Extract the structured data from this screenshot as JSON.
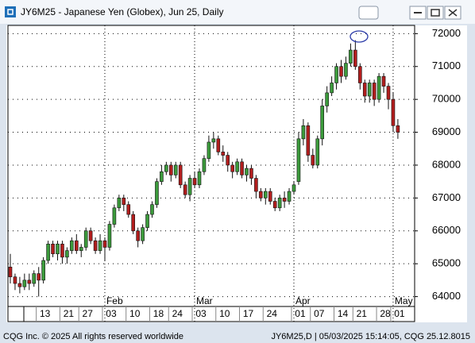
{
  "chart_data": {
    "type": "candlestick",
    "title": "JY6M25 - Japanese Yen (Globex), Jun 25, Daily",
    "footer_left": "CQG Inc. © 2025 All rights reserved worldwide",
    "footer_right": "JY6M25,D | 05/03/2025 15:14:05, CQG 25.12.8015",
    "categories": [
      null,
      null,
      null,
      null,
      null,
      null,
      null,
      "13",
      null,
      null,
      null,
      null,
      "21",
      null,
      null,
      null,
      "27",
      null,
      null,
      null,
      null,
      "03",
      null,
      null,
      null,
      null,
      "10",
      null,
      null,
      null,
      null,
      "18",
      null,
      null,
      null,
      "24",
      null,
      null,
      null,
      null,
      "03",
      null,
      null,
      null,
      null,
      "10",
      null,
      null,
      null,
      null,
      "17",
      null,
      null,
      null,
      null,
      "24",
      null,
      null,
      null,
      null,
      null,
      "01",
      null,
      null,
      null,
      "07",
      null,
      null,
      null,
      null,
      "14",
      null,
      null,
      null,
      "21",
      null,
      null,
      null,
      null,
      "28",
      null,
      null,
      "01"
    ],
    "month_categories": [
      null,
      null,
      null,
      null,
      null,
      null,
      null,
      null,
      null,
      null,
      null,
      null,
      null,
      null,
      null,
      null,
      null,
      null,
      null,
      null,
      null,
      "Feb",
      null,
      null,
      null,
      null,
      null,
      null,
      null,
      null,
      null,
      null,
      null,
      null,
      null,
      null,
      null,
      null,
      null,
      null,
      "Mar",
      null,
      null,
      null,
      null,
      null,
      null,
      null,
      null,
      null,
      null,
      null,
      null,
      null,
      null,
      null,
      null,
      null,
      null,
      null,
      null,
      "Apr",
      null,
      null,
      null,
      null,
      null,
      null,
      null,
      null,
      null,
      null,
      null,
      null,
      null,
      null,
      null,
      null,
      null,
      null,
      null,
      null,
      "May"
    ],
    "open": [
      64900,
      64600,
      64400,
      64300,
      64500,
      64400,
      64700,
      64500,
      65100,
      65600,
      65300,
      65600,
      65200,
      65400,
      65700,
      65400,
      65500,
      66000,
      65700,
      65400,
      65700,
      65500,
      66200,
      66700,
      67000,
      66800,
      66500,
      66000,
      65700,
      66100,
      66500,
      66800,
      67500,
      67800,
      68000,
      67700,
      68000,
      67400,
      67100,
      67600,
      67400,
      67800,
      68200,
      68700,
      68800,
      68400,
      68300,
      68000,
      67800,
      68100,
      67700,
      67900,
      67600,
      67200,
      67000,
      67200,
      66900,
      66700,
      67000,
      66900,
      67200,
      67500,
      68800,
      69200,
      68300,
      68000,
      68800,
      69800,
      70200,
      70500,
      71000,
      70700,
      71100,
      71500,
      71000,
      70500,
      70100,
      70500,
      70000,
      70700,
      70400,
      70000,
      69200
    ],
    "high": [
      65300,
      64700,
      64600,
      64700,
      64700,
      64800,
      64900,
      65200,
      65700,
      65700,
      65700,
      65700,
      65500,
      65800,
      65900,
      65600,
      66100,
      66100,
      65800,
      65900,
      65800,
      66300,
      66800,
      67100,
      67100,
      66900,
      66600,
      66100,
      66200,
      66600,
      66900,
      67600,
      68000,
      68100,
      68100,
      68100,
      68100,
      67500,
      67700,
      67800,
      67900,
      68300,
      68900,
      69000,
      68900,
      68600,
      68400,
      68100,
      68200,
      68200,
      68000,
      68000,
      67700,
      67300,
      67300,
      67300,
      67000,
      67100,
      67200,
      67300,
      67500,
      69000,
      69400,
      69300,
      68500,
      68900,
      70000,
      70400,
      70700,
      71100,
      71200,
      71300,
      71700,
      71800,
      71100,
      70600,
      70600,
      70600,
      70800,
      70800,
      70500,
      70200,
      69400
    ],
    "low": [
      64400,
      64200,
      64100,
      64200,
      64200,
      64300,
      64000,
      64400,
      65000,
      65200,
      65100,
      65000,
      65000,
      65300,
      65300,
      65200,
      65400,
      65600,
      65300,
      65300,
      65100,
      65400,
      66100,
      66600,
      66600,
      66400,
      65900,
      65500,
      65600,
      66000,
      66400,
      66700,
      67400,
      67700,
      67500,
      67600,
      67300,
      67000,
      66900,
      67300,
      67300,
      67700,
      68100,
      68500,
      68300,
      68100,
      67800,
      67600,
      67700,
      67600,
      67500,
      67400,
      67000,
      66900,
      66800,
      66800,
      66600,
      66600,
      66700,
      66800,
      67100,
      67400,
      68600,
      68100,
      67900,
      67900,
      68600,
      69600,
      70100,
      70300,
      70500,
      70600,
      71000,
      70900,
      70300,
      69900,
      69900,
      69800,
      69900,
      70200,
      69700,
      69000,
      68800
    ],
    "close": [
      64600,
      64400,
      64300,
      64500,
      64400,
      64700,
      64500,
      65100,
      65600,
      65300,
      65600,
      65200,
      65400,
      65700,
      65400,
      65500,
      66000,
      65700,
      65400,
      65700,
      65500,
      66200,
      66700,
      67000,
      66800,
      66500,
      66000,
      65700,
      66100,
      66500,
      66800,
      67500,
      67800,
      68000,
      67700,
      68000,
      67400,
      67100,
      67600,
      67400,
      67800,
      68200,
      68700,
      68800,
      68400,
      68300,
      68000,
      67800,
      68100,
      67700,
      67900,
      67600,
      67200,
      67000,
      67200,
      66900,
      66700,
      67000,
      66900,
      67200,
      67400,
      68800,
      69200,
      68300,
      68000,
      68800,
      69800,
      70200,
      70500,
      71000,
      70700,
      71100,
      71500,
      71000,
      70500,
      70100,
      70500,
      70000,
      70700,
      70400,
      70000,
      69200,
      69000
    ],
    "up_color": "#3c9b3c",
    "down_color": "#b21e1e",
    "ylim": [
      63700,
      72250
    ],
    "yticks": [
      64000,
      65000,
      66000,
      67000,
      68000,
      69000,
      70000,
      71000,
      72000
    ],
    "grid": true
  }
}
